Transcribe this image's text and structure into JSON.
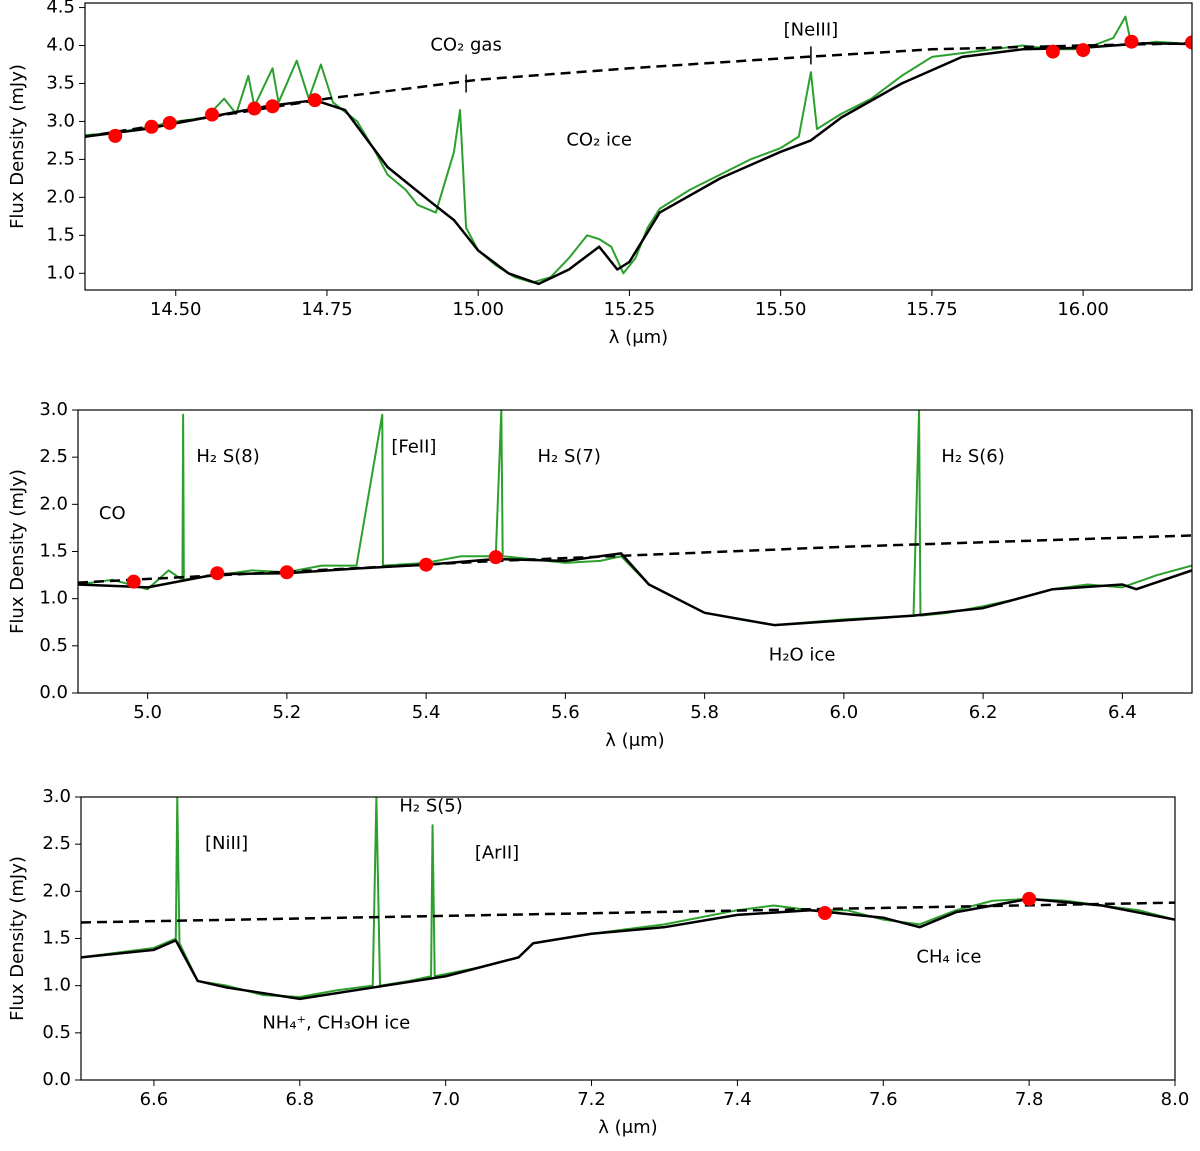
{
  "chart_data": [
    {
      "type": "line",
      "xlabel": "λ (μm)",
      "ylabel": "Flux Density (mJy)",
      "xlim": [
        14.35,
        16.18
      ],
      "ylim": [
        0.78,
        4.56
      ],
      "xticks": [
        {
          "value": 14.5,
          "label": "14.50"
        },
        14.75,
        {
          "value": 15.0,
          "label": "15.00"
        },
        15.25,
        {
          "value": 15.5,
          "label": "15.50"
        },
        15.75,
        {
          "value": 16.0,
          "label": "16.00"
        }
      ],
      "yticks": [
        {
          "value": 1.0,
          "label": "1.0"
        },
        1.5,
        {
          "value": 2.0,
          "label": "2.0"
        },
        2.5,
        {
          "value": 3.0,
          "label": "3.0"
        },
        3.5,
        {
          "value": 4.0,
          "label": "4.0"
        },
        4.5
      ],
      "annotations": [
        "CO₂ gas",
        "[NeIII]",
        "CO₂ ice"
      ],
      "series": [
        {
          "color": "#2ca02c",
          "x": [
            14.35,
            14.4,
            14.45,
            14.5,
            14.55,
            14.58,
            14.6,
            14.62,
            14.63,
            14.66,
            14.67,
            14.7,
            14.72,
            14.74,
            14.76,
            14.8,
            14.83,
            14.85,
            14.88,
            14.9,
            14.93,
            14.96,
            14.97,
            14.98,
            15.0,
            15.03,
            15.06,
            15.09,
            15.12,
            15.15,
            15.18,
            15.2,
            15.22,
            15.24,
            15.26,
            15.28,
            15.3,
            15.35,
            15.4,
            15.45,
            15.5,
            15.53,
            15.55,
            15.56,
            15.6,
            15.65,
            15.7,
            15.75,
            15.8,
            15.85,
            15.9,
            15.95,
            16.0,
            16.05,
            16.07,
            16.08,
            16.12,
            16.18
          ],
          "values": [
            2.82,
            2.85,
            2.92,
            3.0,
            3.05,
            3.3,
            3.1,
            3.6,
            3.2,
            3.7,
            3.25,
            3.8,
            3.3,
            3.75,
            3.25,
            3.0,
            2.6,
            2.3,
            2.1,
            1.9,
            1.8,
            2.6,
            3.15,
            1.6,
            1.3,
            1.1,
            0.95,
            0.88,
            0.95,
            1.2,
            1.5,
            1.45,
            1.35,
            1.0,
            1.2,
            1.6,
            1.85,
            2.1,
            2.3,
            2.5,
            2.65,
            2.8,
            3.65,
            2.9,
            3.1,
            3.3,
            3.6,
            3.85,
            3.9,
            3.95,
            4.0,
            3.95,
            3.95,
            4.1,
            4.38,
            4.0,
            4.05,
            4.02
          ]
        },
        {
          "color": "#000000",
          "x": [
            14.35,
            14.45,
            14.55,
            14.65,
            14.73,
            14.78,
            14.85,
            14.92,
            14.96,
            15.0,
            15.05,
            15.1,
            15.15,
            15.2,
            15.23,
            15.25,
            15.3,
            15.4,
            15.5,
            15.55,
            15.6,
            15.7,
            15.8,
            15.9,
            16.0,
            16.1,
            16.18
          ],
          "values": [
            2.8,
            2.9,
            3.05,
            3.2,
            3.28,
            3.15,
            2.4,
            1.95,
            1.7,
            1.3,
            1.0,
            0.86,
            1.05,
            1.35,
            1.05,
            1.15,
            1.8,
            2.25,
            2.6,
            2.75,
            3.05,
            3.5,
            3.85,
            3.95,
            3.97,
            4.03,
            4.02
          ]
        },
        {
          "color": "#000000",
          "dash": true,
          "x": [
            14.35,
            14.75,
            15.0,
            15.25,
            15.5,
            15.75,
            16.0,
            16.18
          ],
          "values": [
            2.8,
            3.3,
            3.55,
            3.7,
            3.83,
            3.95,
            4.0,
            4.03
          ]
        },
        {
          "color": "#ff0000",
          "marker": "o",
          "x": [
            14.4,
            14.46,
            14.49,
            14.56,
            14.63,
            14.66,
            14.73,
            15.95,
            16.0,
            16.08,
            16.18
          ],
          "values": [
            2.81,
            2.93,
            2.98,
            3.09,
            3.17,
            3.2,
            3.28,
            3.92,
            3.94,
            4.05,
            4.04
          ]
        }
      ]
    },
    {
      "type": "line",
      "xlabel": "λ (μm)",
      "ylabel": "Flux Density (mJy)",
      "xlim": [
        4.9,
        6.5
      ],
      "ylim": [
        0,
        3
      ],
      "xticks": [
        {
          "value": 5.0,
          "label": "5.0"
        },
        5.2,
        5.4,
        5.6,
        5.8,
        {
          "value": 6.0,
          "label": "6.0"
        },
        6.2,
        6.4
      ],
      "yticks": [
        {
          "value": 0,
          "label": "0.0"
        },
        0.5,
        {
          "value": 1,
          "label": "1.0"
        },
        1.5,
        {
          "value": 2,
          "label": "2.0"
        },
        2.5,
        {
          "value": 3,
          "label": "3.0"
        }
      ],
      "annotations": [
        "CO",
        "H₂ S(8)",
        "[FeII]",
        "H₂ S(7)",
        "H₂ S(6)",
        "H₂O ice"
      ],
      "series": [
        {
          "color": "#2ca02c",
          "x": [
            4.9,
            4.95,
            5.0,
            5.03,
            5.05,
            5.051,
            5.052,
            5.1,
            5.15,
            5.2,
            5.25,
            5.3,
            5.337,
            5.338,
            5.4,
            5.45,
            5.5,
            5.508,
            5.51,
            5.55,
            5.6,
            5.65,
            5.68,
            5.72,
            5.76,
            5.8,
            5.85,
            5.9,
            5.95,
            6.0,
            6.05,
            6.1,
            6.108,
            6.11,
            6.15,
            6.2,
            6.25,
            6.3,
            6.35,
            6.4,
            6.45,
            6.5
          ],
          "values": [
            1.15,
            1.2,
            1.1,
            1.3,
            1.2,
            2.95,
            1.2,
            1.25,
            1.3,
            1.28,
            1.35,
            1.35,
            2.95,
            1.35,
            1.38,
            1.45,
            1.45,
            3.0,
            1.45,
            1.42,
            1.38,
            1.4,
            1.45,
            1.15,
            1.0,
            0.85,
            0.78,
            0.72,
            0.75,
            0.78,
            0.8,
            0.82,
            3.0,
            0.82,
            0.85,
            0.92,
            1.0,
            1.1,
            1.15,
            1.12,
            1.25,
            1.35
          ]
        },
        {
          "color": "#000000",
          "x": [
            4.9,
            5.0,
            5.1,
            5.2,
            5.3,
            5.4,
            5.5,
            5.6,
            5.68,
            5.72,
            5.8,
            5.9,
            6.0,
            6.1,
            6.2,
            6.3,
            6.4,
            6.42,
            6.5
          ],
          "values": [
            1.15,
            1.12,
            1.26,
            1.27,
            1.32,
            1.36,
            1.42,
            1.4,
            1.48,
            1.15,
            0.85,
            0.72,
            0.77,
            0.82,
            0.9,
            1.1,
            1.15,
            1.1,
            1.3
          ]
        },
        {
          "color": "#000000",
          "dash": true,
          "x": [
            4.9,
            5.5,
            6.0,
            6.5
          ],
          "values": [
            1.17,
            1.4,
            1.55,
            1.67
          ]
        },
        {
          "color": "#ff0000",
          "marker": "o",
          "x": [
            4.98,
            5.1,
            5.2,
            5.4,
            5.5
          ],
          "values": [
            1.18,
            1.27,
            1.28,
            1.36,
            1.44
          ]
        }
      ]
    },
    {
      "type": "line",
      "xlabel": "λ (μm)",
      "ylabel": "Flux Density (mJy)",
      "xlim": [
        6.5,
        8.0
      ],
      "ylim": [
        0,
        3
      ],
      "xticks": [
        6.6,
        6.8,
        {
          "value": 7.0,
          "label": "7.0"
        },
        7.2,
        7.4,
        7.6,
        7.8,
        {
          "value": 8.0,
          "label": "8.0"
        }
      ],
      "yticks": [
        {
          "value": 0,
          "label": "0.0"
        },
        0.5,
        {
          "value": 1,
          "label": "1.0"
        },
        1.5,
        {
          "value": 2,
          "label": "2.0"
        },
        2.5,
        {
          "value": 3,
          "label": "3.0"
        }
      ],
      "annotations": [
        "[NiII]",
        "H₂ S(5)",
        "[ArII]",
        "NH₄⁺, CH₃OH ice",
        "CH₄ ice"
      ],
      "series": [
        {
          "color": "#2ca02c",
          "x": [
            6.5,
            6.55,
            6.6,
            6.63,
            6.632,
            6.635,
            6.66,
            6.7,
            6.75,
            6.8,
            6.85,
            6.9,
            6.905,
            6.91,
            6.95,
            6.98,
            6.982,
            6.985,
            7.05,
            7.1,
            7.12,
            7.2,
            7.3,
            7.4,
            7.45,
            7.5,
            7.55,
            7.6,
            7.65,
            7.7,
            7.75,
            7.8,
            7.85,
            7.9,
            7.95,
            8.0
          ],
          "values": [
            1.3,
            1.35,
            1.4,
            1.5,
            3.0,
            1.45,
            1.05,
            1.0,
            0.9,
            0.88,
            0.95,
            1.0,
            3.0,
            1.0,
            1.05,
            1.1,
            2.7,
            1.1,
            1.2,
            1.3,
            1.45,
            1.55,
            1.65,
            1.8,
            1.85,
            1.8,
            1.8,
            1.7,
            1.65,
            1.8,
            1.9,
            1.92,
            1.9,
            1.85,
            1.8,
            1.7
          ]
        },
        {
          "color": "#000000",
          "x": [
            6.5,
            6.6,
            6.63,
            6.66,
            6.7,
            6.8,
            6.9,
            7.0,
            7.1,
            7.12,
            7.2,
            7.3,
            7.4,
            7.5,
            7.6,
            7.65,
            7.7,
            7.8,
            7.9,
            8.0
          ],
          "values": [
            1.3,
            1.38,
            1.48,
            1.05,
            0.98,
            0.86,
            0.98,
            1.1,
            1.3,
            1.45,
            1.55,
            1.62,
            1.75,
            1.8,
            1.72,
            1.62,
            1.78,
            1.92,
            1.85,
            1.7
          ]
        },
        {
          "color": "#000000",
          "dash": true,
          "x": [
            6.5,
            8.0
          ],
          "values": [
            1.67,
            1.88
          ]
        },
        {
          "color": "#ff0000",
          "marker": "o",
          "x": [
            7.52,
            7.8
          ],
          "values": [
            1.77,
            1.92
          ]
        }
      ]
    }
  ]
}
